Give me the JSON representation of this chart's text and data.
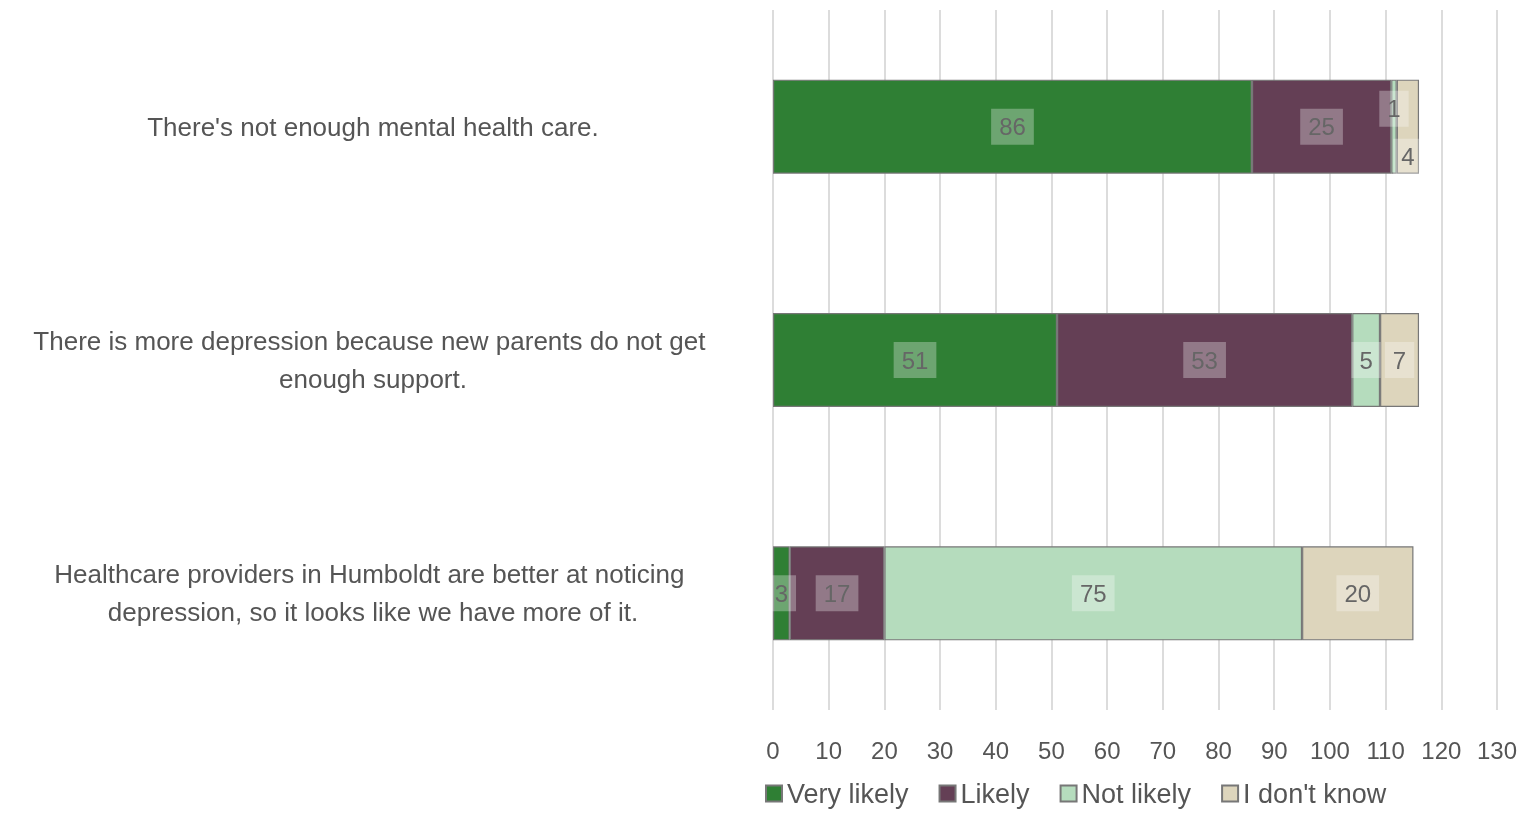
{
  "chart_data": {
    "type": "bar",
    "orientation": "horizontal",
    "stacked": true,
    "categories": [
      "There's not enough mental health care.",
      "There is more depression because new parents do not get enough support.",
      "Healthcare providers in Humboldt are better at noticing depression, so it looks like we have more of it."
    ],
    "series": [
      {
        "name": "Very likely",
        "color": "#2f7f34",
        "values": [
          86,
          51,
          3
        ]
      },
      {
        "name": "Likely",
        "color": "#643f55",
        "values": [
          25,
          53,
          17
        ]
      },
      {
        "name": "Not likely",
        "color": "#b5dcbd",
        "values": [
          1,
          5,
          75
        ]
      },
      {
        "name": "I don't know",
        "color": "#ddd5bc",
        "values": [
          4,
          7,
          20
        ]
      }
    ],
    "xlim": [
      0,
      130
    ],
    "xticks": [
      0,
      10,
      20,
      30,
      40,
      50,
      60,
      70,
      80,
      90,
      100,
      110,
      120,
      130
    ],
    "grid": "x",
    "legend": "bottom",
    "data_labels": true
  }
}
